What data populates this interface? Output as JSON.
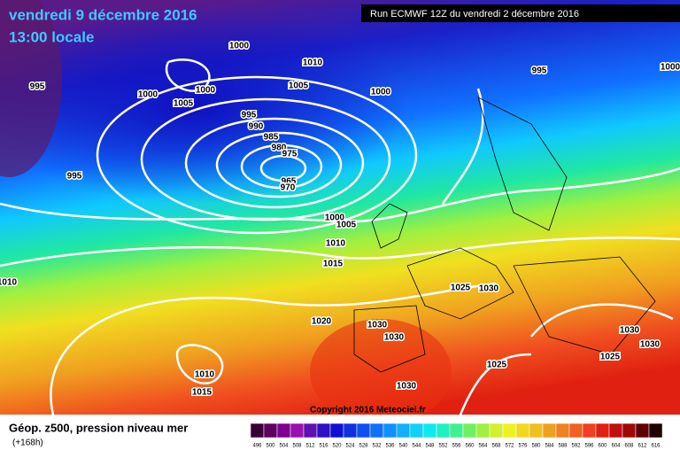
{
  "header": {
    "date": "vendredi 9 décembre 2016",
    "time": "13:00 locale",
    "run": "Run ECMWF 12Z du vendredi 2 décembre 2016"
  },
  "isobar_labels": [
    "1000",
    "1010",
    "995",
    "1000",
    "1000",
    "1005",
    "1005",
    "1000",
    "995",
    "1000",
    "995",
    "990",
    "985",
    "980",
    "975",
    "965",
    "970",
    "995",
    "1000",
    "1005",
    "1010",
    "1015",
    "1025",
    "1030",
    "1020",
    "1030",
    "1030",
    "1030",
    "1030",
    "1025",
    "1025",
    "1010",
    "1015",
    "1030",
    "1010"
  ],
  "copyright": "Copyright 2016 Meteociel.fr",
  "legend": {
    "title": "Géop. z500, pression niveau mer",
    "lead": "(+168h)",
    "labels": [
      496,
      500,
      504,
      508,
      512,
      516,
      520,
      524,
      528,
      532,
      536,
      540,
      544,
      548,
      552,
      556,
      560,
      564,
      568,
      572,
      576,
      580,
      584,
      588,
      592,
      596,
      600,
      604,
      608,
      612,
      616
    ],
    "colors": [
      "#3a0030",
      "#600060",
      "#800090",
      "#9a10b0",
      "#6010b0",
      "#3010c0",
      "#1010d0",
      "#1030e0",
      "#1050f0",
      "#1070ff",
      "#1090ff",
      "#10b0ff",
      "#10d0ff",
      "#10e8f0",
      "#20f0c0",
      "#40f090",
      "#70f060",
      "#a0f040",
      "#d0f030",
      "#f0f020",
      "#f0d820",
      "#f0c020",
      "#f0a020",
      "#f08020",
      "#f06020",
      "#f04020",
      "#e02010",
      "#c01010",
      "#a00808",
      "#600000",
      "#200000"
    ]
  }
}
